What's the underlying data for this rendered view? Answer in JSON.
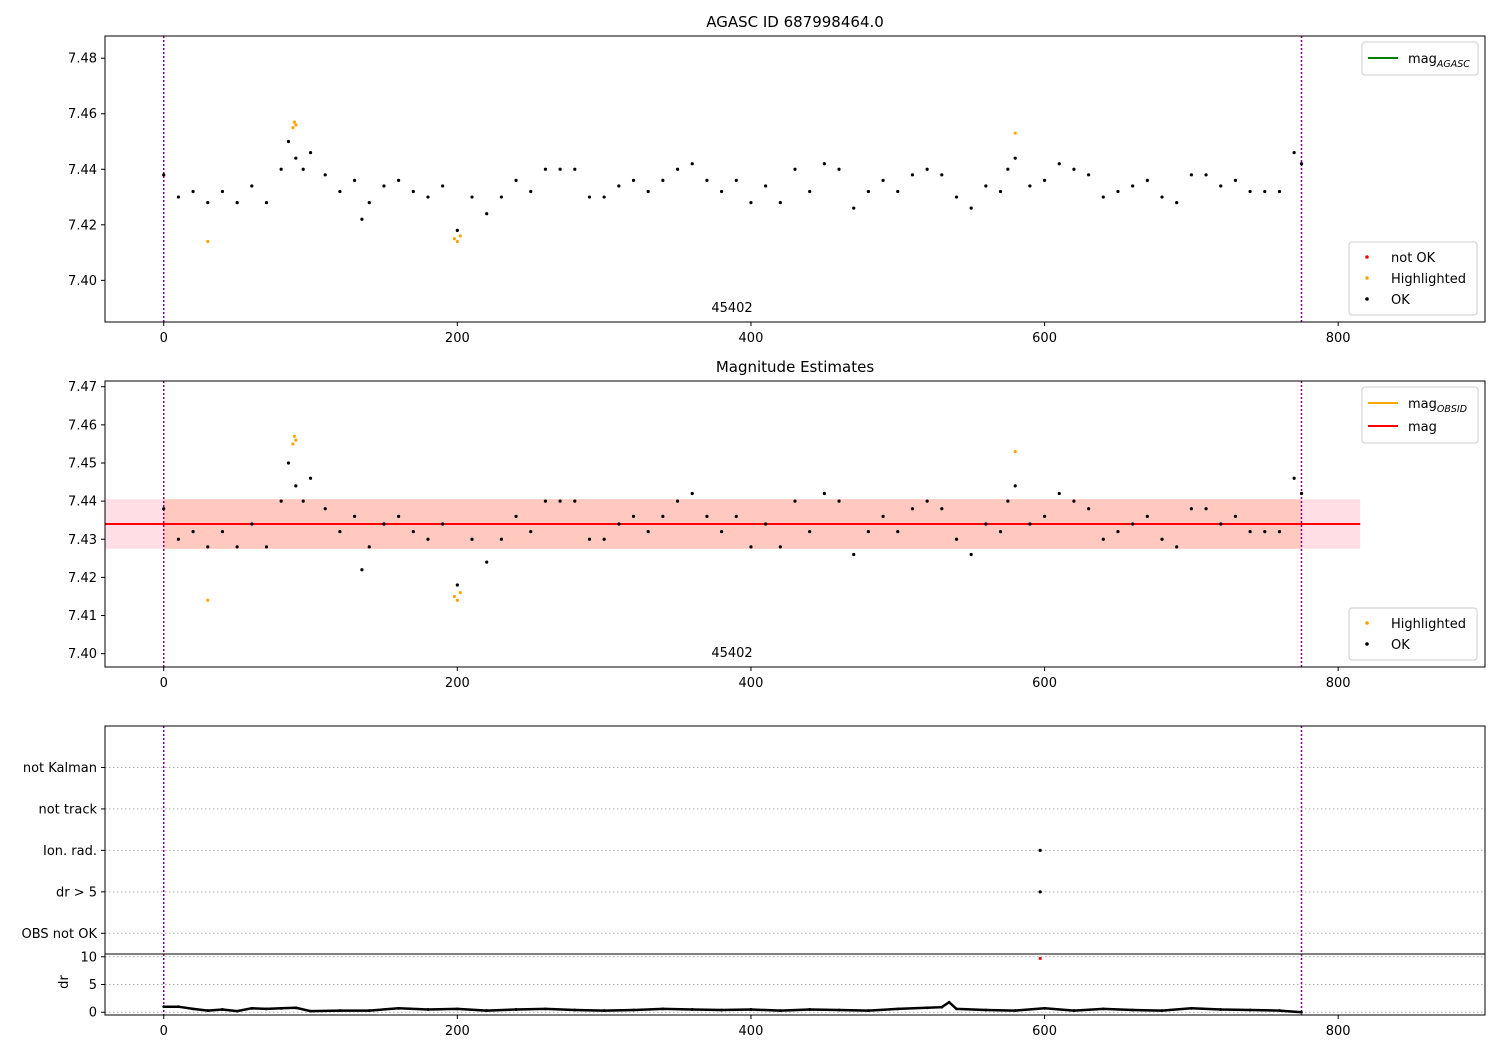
{
  "chart_data": [
    {
      "id": "p1",
      "type": "scatter",
      "title": "AGASC ID 687998464.0",
      "xlim": [
        -40,
        900
      ],
      "ylim": [
        7.385,
        7.488
      ],
      "xticks": [
        0,
        200,
        400,
        600,
        800
      ],
      "yticks": [
        7.4,
        7.42,
        7.44,
        7.46,
        7.48
      ],
      "ytick_labels": [
        "7.40",
        "7.42",
        "7.44",
        "7.46",
        "7.48"
      ],
      "grid": false,
      "annotation": "45402",
      "vlines": [
        0,
        775
      ],
      "legend_lines": [
        {
          "label": "mag",
          "sub": "AGASC",
          "color": "#008000"
        }
      ],
      "legend_points": [
        {
          "label": "not OK",
          "color": "#ff0000"
        },
        {
          "label": "Highlighted",
          "color": "#ffa500"
        },
        {
          "label": "OK",
          "color": "#000000"
        }
      ],
      "series": [
        {
          "name": "OK",
          "color": "#000000",
          "x": [
            0,
            10,
            20,
            30,
            40,
            50,
            60,
            70,
            80,
            85,
            90,
            95,
            100,
            110,
            120,
            130,
            135,
            140,
            150,
            160,
            170,
            180,
            190,
            200,
            210,
            220,
            230,
            240,
            250,
            260,
            270,
            280,
            290,
            300,
            310,
            320,
            330,
            340,
            350,
            360,
            370,
            380,
            390,
            400,
            410,
            420,
            430,
            440,
            450,
            460,
            470,
            480,
            490,
            500,
            510,
            520,
            530,
            540,
            550,
            560,
            570,
            575,
            580,
            590,
            600,
            610,
            620,
            630,
            640,
            650,
            660,
            670,
            680,
            690,
            700,
            710,
            720,
            730,
            740,
            750,
            760,
            770,
            775
          ],
          "y": [
            7.438,
            7.43,
            7.432,
            7.428,
            7.432,
            7.428,
            7.434,
            7.428,
            7.44,
            7.45,
            7.444,
            7.44,
            7.446,
            7.438,
            7.432,
            7.436,
            7.422,
            7.428,
            7.434,
            7.436,
            7.432,
            7.43,
            7.434,
            7.418,
            7.43,
            7.424,
            7.43,
            7.436,
            7.432,
            7.44,
            7.44,
            7.44,
            7.43,
            7.43,
            7.434,
            7.436,
            7.432,
            7.436,
            7.44,
            7.442,
            7.436,
            7.432,
            7.436,
            7.428,
            7.434,
            7.428,
            7.44,
            7.432,
            7.442,
            7.44,
            7.426,
            7.432,
            7.436,
            7.432,
            7.438,
            7.44,
            7.438,
            7.43,
            7.426,
            7.434,
            7.432,
            7.44,
            7.444,
            7.434,
            7.436,
            7.442,
            7.44,
            7.438,
            7.43,
            7.432,
            7.434,
            7.436,
            7.43,
            7.428,
            7.438,
            7.438,
            7.434,
            7.436,
            7.432,
            7.432,
            7.432,
            7.446,
            7.442
          ]
        },
        {
          "name": "Highlighted",
          "color": "#ffa500",
          "x": [
            30,
            88,
            89,
            90,
            198,
            200,
            202,
            580
          ],
          "y": [
            7.414,
            7.455,
            7.457,
            7.456,
            7.415,
            7.414,
            7.416,
            7.453
          ]
        }
      ]
    },
    {
      "id": "p2",
      "type": "scatter",
      "title": "Magnitude Estimates",
      "xlim": [
        -40,
        900
      ],
      "ylim": [
        7.3965,
        7.4715
      ],
      "xticks": [
        0,
        200,
        400,
        600,
        800
      ],
      "yticks": [
        7.4,
        7.41,
        7.42,
        7.43,
        7.44,
        7.45,
        7.46,
        7.47
      ],
      "ytick_labels": [
        "7.40",
        "7.41",
        "7.42",
        "7.43",
        "7.44",
        "7.45",
        "7.46",
        "7.47"
      ],
      "grid": false,
      "annotation": "45402",
      "vlines": [
        0,
        775
      ],
      "hline": {
        "y": 7.434,
        "x0": -40,
        "x1": 815,
        "color": "#ff0000"
      },
      "bands": [
        {
          "x0": -40,
          "x1": 815,
          "y0": 7.4275,
          "y1": 7.4405,
          "color": "#ffc0cb",
          "opacity": 0.5
        },
        {
          "x0": 0,
          "x1": 775,
          "y0": 7.4275,
          "y1": 7.4405,
          "color": "#ffa07a",
          "opacity": 0.35
        }
      ],
      "legend_lines": [
        {
          "label": "mag",
          "sub": "OBSID",
          "color": "#ffa500"
        },
        {
          "label": "mag",
          "sub": "",
          "color": "#ff0000"
        }
      ],
      "legend_points": [
        {
          "label": "Highlighted",
          "color": "#ffa500"
        },
        {
          "label": "OK",
          "color": "#000000"
        }
      ],
      "series": [
        {
          "name": "OK",
          "color": "#000000",
          "x": [
            0,
            10,
            20,
            30,
            40,
            50,
            60,
            70,
            80,
            85,
            90,
            95,
            100,
            110,
            120,
            130,
            135,
            140,
            150,
            160,
            170,
            180,
            190,
            200,
            210,
            220,
            230,
            240,
            250,
            260,
            270,
            280,
            290,
            300,
            310,
            320,
            330,
            340,
            350,
            360,
            370,
            380,
            390,
            400,
            410,
            420,
            430,
            440,
            450,
            460,
            470,
            480,
            490,
            500,
            510,
            520,
            530,
            540,
            550,
            560,
            570,
            575,
            580,
            590,
            600,
            610,
            620,
            630,
            640,
            650,
            660,
            670,
            680,
            690,
            700,
            710,
            720,
            730,
            740,
            750,
            760,
            770,
            775
          ],
          "y": [
            7.438,
            7.43,
            7.432,
            7.428,
            7.432,
            7.428,
            7.434,
            7.428,
            7.44,
            7.45,
            7.444,
            7.44,
            7.446,
            7.438,
            7.432,
            7.436,
            7.422,
            7.428,
            7.434,
            7.436,
            7.432,
            7.43,
            7.434,
            7.418,
            7.43,
            7.424,
            7.43,
            7.436,
            7.432,
            7.44,
            7.44,
            7.44,
            7.43,
            7.43,
            7.434,
            7.436,
            7.432,
            7.436,
            7.44,
            7.442,
            7.436,
            7.432,
            7.436,
            7.428,
            7.434,
            7.428,
            7.44,
            7.432,
            7.442,
            7.44,
            7.426,
            7.432,
            7.436,
            7.432,
            7.438,
            7.44,
            7.438,
            7.43,
            7.426,
            7.434,
            7.432,
            7.44,
            7.444,
            7.434,
            7.436,
            7.442,
            7.44,
            7.438,
            7.43,
            7.432,
            7.434,
            7.436,
            7.43,
            7.428,
            7.438,
            7.438,
            7.434,
            7.436,
            7.432,
            7.432,
            7.432,
            7.446,
            7.442
          ]
        },
        {
          "name": "Highlighted",
          "color": "#ffa500",
          "x": [
            30,
            88,
            89,
            90,
            198,
            200,
            202,
            580
          ],
          "y": [
            7.414,
            7.455,
            7.457,
            7.456,
            7.415,
            7.414,
            7.416,
            7.453
          ]
        }
      ]
    },
    {
      "id": "p3",
      "type": "scatter",
      "xlim": [
        -40,
        900
      ],
      "ylim": [
        -0.5,
        5
      ],
      "yticks": [
        0,
        1,
        2,
        3,
        4
      ],
      "ytick_labels": [
        "OBS not OK",
        "dr > 5",
        "Ion. rad.",
        "not track",
        "not Kalman"
      ],
      "grid": true,
      "vlines": [
        0,
        775
      ],
      "series": [
        {
          "name": "flags",
          "color": "#000000",
          "x": [
            597,
            597
          ],
          "y": [
            1,
            2
          ]
        }
      ]
    },
    {
      "id": "p4",
      "type": "line",
      "xlim": [
        -40,
        900
      ],
      "ylim": [
        -0.5,
        10.5
      ],
      "xticks": [
        0,
        200,
        400,
        600,
        800
      ],
      "yticks": [
        0,
        5,
        10
      ],
      "ytick_labels": [
        "0",
        "5",
        "10"
      ],
      "ylabel": "dr",
      "grid": true,
      "vlines": [
        0,
        775
      ],
      "series": [
        {
          "name": "dr",
          "color": "#000000",
          "x": [
            0,
            10,
            20,
            30,
            40,
            50,
            60,
            70,
            80,
            90,
            100,
            120,
            140,
            160,
            180,
            200,
            220,
            240,
            260,
            280,
            300,
            320,
            340,
            360,
            380,
            400,
            420,
            440,
            460,
            480,
            500,
            520,
            530,
            535,
            540,
            560,
            580,
            600,
            620,
            640,
            660,
            680,
            700,
            720,
            740,
            760,
            775
          ],
          "y": [
            1.0,
            1.0,
            0.6,
            0.3,
            0.5,
            0.2,
            0.7,
            0.6,
            0.7,
            0.8,
            0.2,
            0.3,
            0.3,
            0.7,
            0.5,
            0.6,
            0.3,
            0.5,
            0.6,
            0.4,
            0.3,
            0.4,
            0.6,
            0.5,
            0.4,
            0.5,
            0.3,
            0.5,
            0.4,
            0.3,
            0.6,
            0.8,
            0.9,
            1.8,
            0.6,
            0.4,
            0.3,
            0.7,
            0.3,
            0.6,
            0.4,
            0.3,
            0.7,
            0.5,
            0.4,
            0.3,
            0.0
          ]
        },
        {
          "name": "dr_not_ok",
          "color": "#ff0000",
          "x": [
            597
          ],
          "y": [
            9.7
          ]
        }
      ]
    }
  ]
}
